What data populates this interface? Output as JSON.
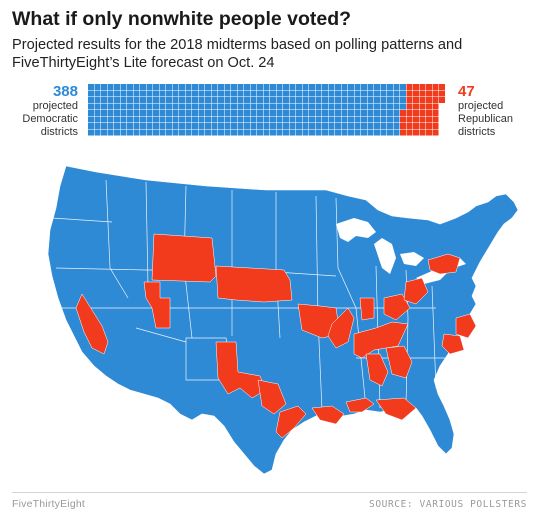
{
  "header": {
    "title": "What if only nonwhite people voted?",
    "subtitle": "Projected results for the 2018 midterms based on polling patterns and FiveThirtyEight’s Lite forecast on Oct. 24"
  },
  "results": {
    "democratic": {
      "count": "388",
      "label_line1": "projected",
      "label_line2": "Democratic",
      "label_line3": "districts",
      "value": 388,
      "color": "#2f8ad6"
    },
    "republican": {
      "count": "47",
      "label_line1": "projected",
      "label_line2": "Republican",
      "label_line3": "districts",
      "value": 47,
      "color": "#f23b1c"
    },
    "total_districts": 435
  },
  "map": {
    "colors": {
      "democratic": "#2f8ad6",
      "republican": "#f23b1c",
      "border": "#ffffff"
    },
    "republican_areas": [
      "Wyoming",
      "Nebraska",
      "Utah",
      "Southern California / Nevada",
      "West Texas",
      "Central Texas",
      "Texas Gulf Coast",
      "Louisiana",
      "Mississippi / Alabama coast",
      "Florida Panhandle",
      "Missouri",
      "Arkansas",
      "Kentucky",
      "Tennessee",
      "Georgia",
      "Pennsylvania",
      "West Virginia",
      "North Carolina"
    ]
  },
  "footer": {
    "brand": "FiveThirtyEight",
    "source": "SOURCE: VARIOUS POLLSTERS"
  }
}
